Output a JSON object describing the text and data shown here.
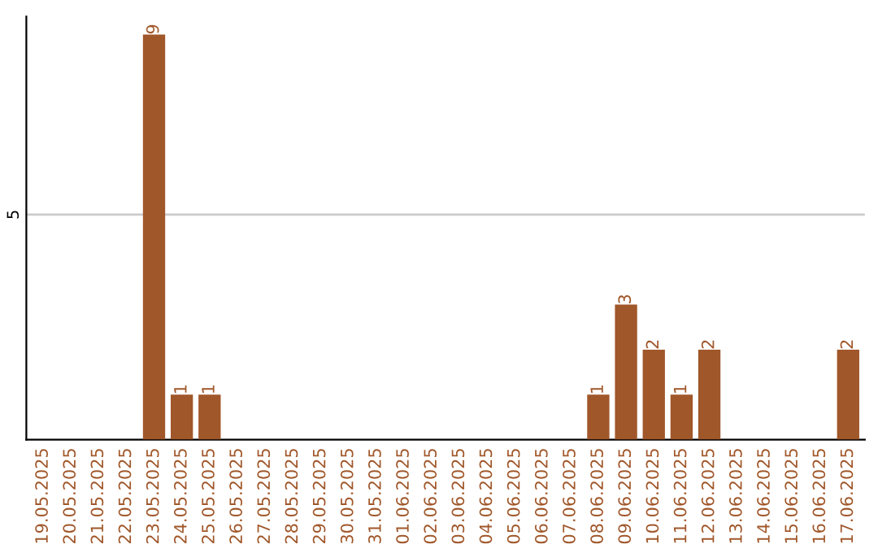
{
  "chart_data": {
    "type": "bar",
    "categories": [
      "19.05.2025",
      "20.05.2025",
      "21.05.2025",
      "22.05.2025",
      "23.05.2025",
      "24.05.2025",
      "25.05.2025",
      "26.05.2025",
      "27.05.2025",
      "28.05.2025",
      "29.05.2025",
      "30.05.2025",
      "31.05.2025",
      "01.06.2025",
      "02.06.2025",
      "03.06.2025",
      "04.06.2025",
      "05.06.2025",
      "06.06.2025",
      "07.06.2025",
      "08.06.2025",
      "09.06.2025",
      "10.06.2025",
      "11.06.2025",
      "12.06.2025",
      "13.06.2025",
      "14.06.2025",
      "15.06.2025",
      "16.06.2025",
      "17.06.2025"
    ],
    "values": [
      0,
      0,
      0,
      0,
      9,
      1,
      1,
      0,
      0,
      0,
      0,
      0,
      0,
      0,
      0,
      0,
      0,
      0,
      0,
      0,
      1,
      3,
      2,
      1,
      2,
      0,
      0,
      0,
      0,
      2
    ],
    "value_labels": [
      null,
      null,
      null,
      null,
      "9",
      "1",
      "1",
      null,
      null,
      null,
      null,
      null,
      null,
      null,
      null,
      null,
      null,
      null,
      null,
      null,
      "1",
      "3",
      "2",
      "1",
      "2",
      null,
      null,
      null,
      null,
      "2"
    ],
    "color": "#a0572a",
    "ylim": [
      0,
      9.4
    ],
    "yticks": [
      5
    ],
    "grid": "y"
  }
}
